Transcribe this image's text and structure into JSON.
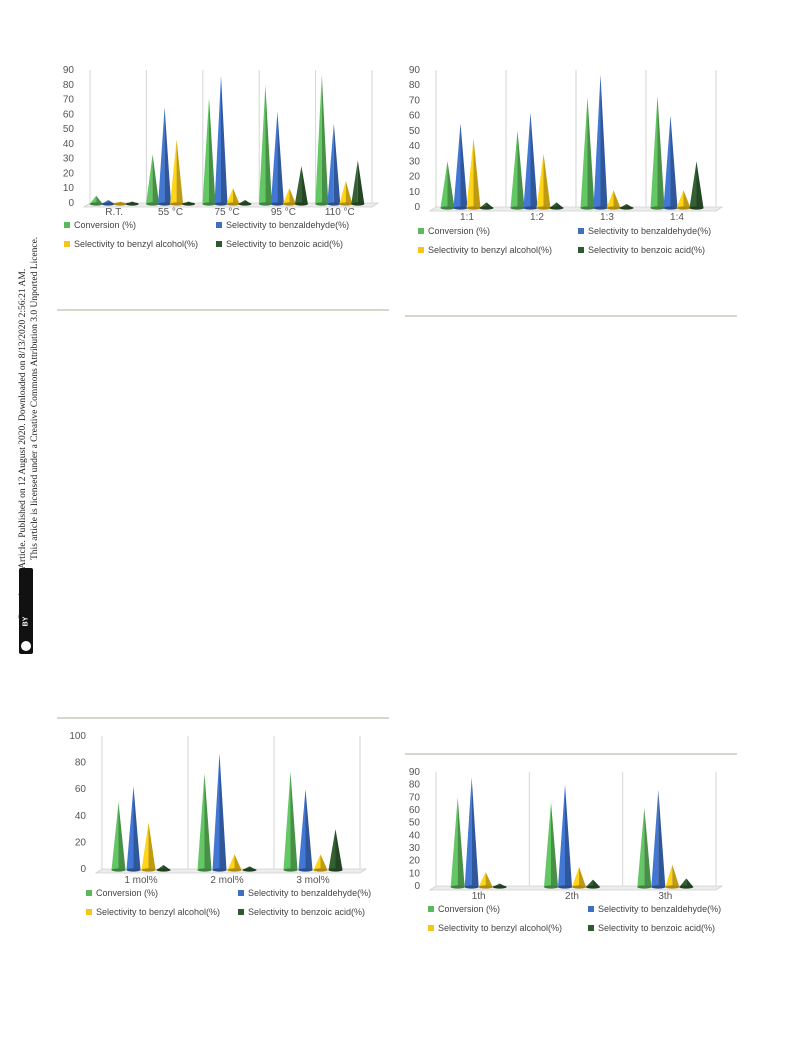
{
  "side_notice": {
    "line1": "Open Access Article. Published on 12 August 2020. Downloaded on 8/13/2020 2:56:21 AM.",
    "line2": "This article is licensed under a Creative Commons Attribution 3.0 Unported Licence.",
    "badge_cc": "cc",
    "badge_by": "BY"
  },
  "colors": {
    "conversion": "#5cb85c",
    "benzaldehyde": "#3d6fc4",
    "benzyl_alcohol": "#f5c518",
    "benzoic_acid": "#2f5a2f"
  },
  "legend_labels": [
    "Conversion (%)",
    "Selectivity to benzaldehyde(%)",
    "Selectivity to benzyl alcohol(%)",
    "Selectivity to benzoic acid(%)"
  ],
  "chart_data": [
    {
      "type": "bar",
      "categories": [
        "R.T.",
        "55 °C",
        "75 °C",
        "95 °C",
        "110 °C"
      ],
      "ylim": [
        0,
        90
      ],
      "yticks": [
        0,
        10,
        20,
        30,
        40,
        50,
        60,
        70,
        80,
        90
      ],
      "series": [
        {
          "name": "Conversion (%)",
          "values": [
            5,
            33,
            71,
            80,
            87
          ]
        },
        {
          "name": "Selectivity to benzaldehyde(%)",
          "values": [
            2,
            65,
            86,
            62,
            54
          ]
        },
        {
          "name": "Selectivity to benzyl alcohol(%)",
          "values": [
            1,
            43,
            10,
            10,
            15
          ]
        },
        {
          "name": "Selectivity to benzoic acid(%)",
          "values": [
            1,
            1,
            2,
            25,
            29
          ]
        }
      ]
    },
    {
      "type": "bar",
      "categories": [
        "1:1",
        "1:2",
        "1:3",
        "1:4"
      ],
      "ylim": [
        0,
        90
      ],
      "yticks": [
        0,
        10,
        20,
        30,
        40,
        50,
        60,
        70,
        80,
        90
      ],
      "series": [
        {
          "name": "Conversion (%)",
          "values": [
            30,
            50,
            72,
            73
          ]
        },
        {
          "name": "Selectivity to benzaldehyde(%)",
          "values": [
            55,
            62,
            87,
            60
          ]
        },
        {
          "name": "Selectivity to benzyl alcohol(%)",
          "values": [
            45,
            35,
            11,
            11
          ]
        },
        {
          "name": "Selectivity to benzoic acid(%)",
          "values": [
            3,
            3,
            2,
            30
          ]
        }
      ]
    },
    {
      "type": "bar",
      "categories": [
        "1 mol%",
        "2 mol%",
        "3 mol%"
      ],
      "ylim": [
        0,
        100
      ],
      "yticks": [
        0,
        20,
        40,
        60,
        80,
        100
      ],
      "series": [
        {
          "name": "Conversion (%)",
          "values": [
            50,
            72,
            73
          ]
        },
        {
          "name": "Selectivity to benzaldehyde(%)",
          "values": [
            62,
            87,
            60
          ]
        },
        {
          "name": "Selectivity to benzyl alcohol(%)",
          "values": [
            35,
            11,
            11
          ]
        },
        {
          "name": "Selectivity to benzoic acid(%)",
          "values": [
            3,
            2,
            30
          ]
        }
      ]
    },
    {
      "type": "bar",
      "categories": [
        "1th",
        "2th",
        "3th"
      ],
      "ylim": [
        0,
        90
      ],
      "yticks": [
        0,
        10,
        20,
        30,
        40,
        50,
        60,
        70,
        80,
        90
      ],
      "series": [
        {
          "name": "Conversion (%)",
          "values": [
            70,
            66,
            62
          ]
        },
        {
          "name": "Selectivity to benzaldehyde(%)",
          "values": [
            86,
            80,
            76
          ]
        },
        {
          "name": "Selectivity to benzyl alcohol(%)",
          "values": [
            11,
            15,
            17
          ]
        },
        {
          "name": "Selectivity to benzoic acid(%)",
          "values": [
            2,
            5,
            6
          ]
        }
      ]
    }
  ]
}
